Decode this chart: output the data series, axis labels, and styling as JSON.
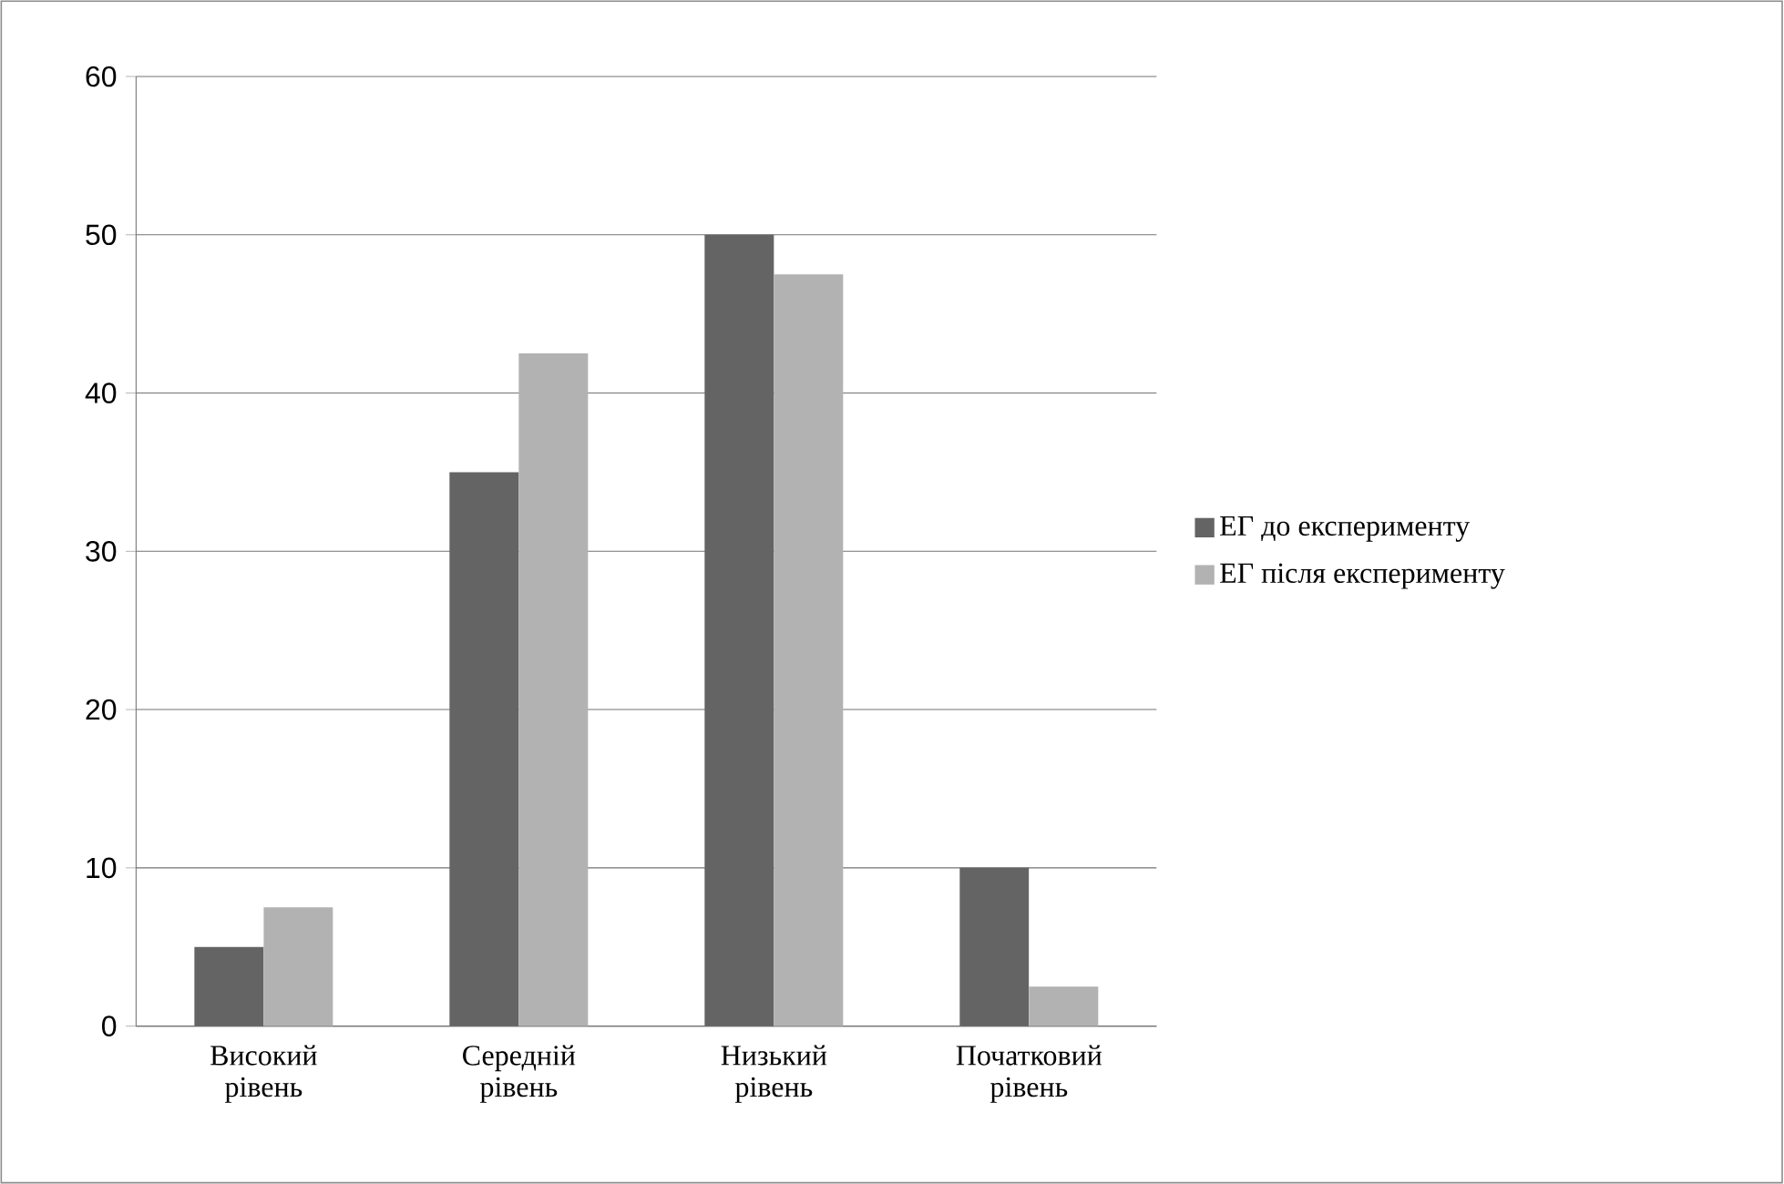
{
  "chart_data": {
    "type": "bar",
    "categories": [
      "Високий рівень",
      "Середній рівень",
      "Низький рівень",
      "Початковий рівень"
    ],
    "series": [
      {
        "name": "ЕГ до експерименту",
        "color": "#646464",
        "values": [
          5,
          35,
          50,
          10
        ]
      },
      {
        "name": "ЕГ після експерименту",
        "color": "#b2b2b2",
        "values": [
          7.5,
          42.5,
          47.5,
          2.5
        ]
      }
    ],
    "ylim": [
      0,
      60
    ],
    "yticks": [
      0,
      10,
      20,
      30,
      40,
      50,
      60
    ],
    "grid": "y",
    "legend": "right"
  }
}
